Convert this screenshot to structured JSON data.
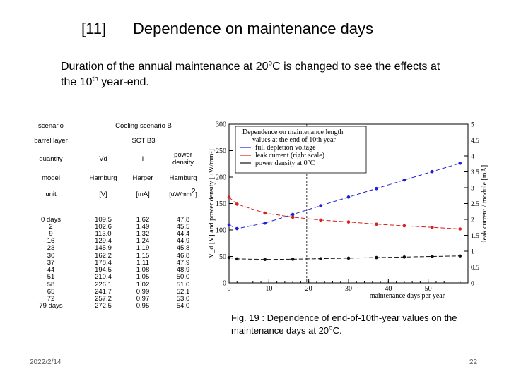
{
  "slide": {
    "title_number": "[11]",
    "title": "Dependence on maintenance days",
    "subtitle_pre": "Duration of the annual maintenance at 20",
    "subtitle_deg": "o",
    "subtitle_mid": "C is changed to see the effects at the 10",
    "subtitle_sup": "th",
    "subtitle_post": " year-end.",
    "caption_pre": "Fig. 19 : Dependence of end-of-10th-year values on the maintenance days at 20",
    "caption_deg": "o",
    "caption_post": "C.",
    "date": "2022/2/14",
    "page": "22"
  },
  "table": {
    "scenario_label": "scenario",
    "scenario_value": "Cooling scenario B",
    "barrel_label": "barrel layer",
    "barrel_value": "SCT B3",
    "quantity_label": "quantity",
    "quantities": [
      "Vd",
      "I",
      "power density"
    ],
    "model_label": "model",
    "models": [
      "Hamburg",
      "Harper",
      "Hamburg"
    ],
    "unit_label": "unit",
    "units": [
      "[V]",
      "[mA]",
      "[uW/mm2]"
    ],
    "days": "0 days\n2\n9\n16\n23\n30\n37\n44\n51\n58\n65\n72\n79 days",
    "vd": "109.5\n102.6\n113.0\n129.4\n145.9\n162.2\n178.4\n194.5\n210.4\n226.1\n241.7\n257.2\n272.5",
    "current": "1.62\n1.49\n1.32\n1.24\n1.19\n1.15\n1.11\n1.08\n1.05\n1.02\n0.99\n0.97\n0.95",
    "power": "47.8\n45.5\n44.4\n44.9\n45.8\n46.8\n47.9\n48.9\n50.0\n51.0\n52.1\n53.0\n54.0"
  },
  "chart_data": {
    "type": "line",
    "legend_title_line1": "Dependence on maintenance length",
    "legend_title_line2": "values at the end of 10th year",
    "series": [
      {
        "name": "full depletion voltage",
        "color": "#1f1fd6",
        "axis": "left",
        "x": [
          0,
          2,
          9,
          16,
          23,
          30,
          37,
          44,
          51,
          58
        ],
        "y": [
          109.5,
          102.6,
          113.0,
          129.4,
          145.9,
          162.2,
          178.4,
          194.5,
          210.4,
          226.1
        ]
      },
      {
        "name": "leak current (right scale)",
        "color": "#d81e1e",
        "axis": "right",
        "x": [
          0,
          2,
          9,
          16,
          23,
          30,
          37,
          44,
          51,
          58
        ],
        "y": [
          2.7,
          2.48,
          2.2,
          2.07,
          1.98,
          1.92,
          1.85,
          1.8,
          1.75,
          1.7
        ]
      },
      {
        "name": "power density at 0°C",
        "color": "#111111",
        "axis": "left",
        "x": [
          0,
          2,
          9,
          16,
          23,
          30,
          37,
          44,
          51,
          58
        ],
        "y": [
          47.8,
          45.5,
          44.4,
          44.9,
          45.8,
          46.8,
          47.9,
          48.9,
          50.0,
          51.0
        ]
      }
    ],
    "xlabel": "maintenance days per year",
    "ylabel_left": "V_d [V] and power density [μW/mm²]",
    "ylabel_right": "leak current / module [mA]",
    "xlim": [
      0,
      60
    ],
    "ylim_left": [
      0,
      300
    ],
    "ylim_right": [
      0,
      5
    ],
    "x_ticks": [
      "0",
      "10",
      "20",
      "30",
      "40",
      "50"
    ],
    "y_left_ticks": [
      "0",
      "50",
      "100",
      "150",
      "200",
      "250",
      "300"
    ],
    "y_right_ticks": [
      "0",
      "0.5",
      "1",
      "1.5",
      "2",
      "2.5",
      "3",
      "3.5",
      "4",
      "4.5",
      "5"
    ],
    "vlines_x": [
      9.5,
      19.5
    ]
  }
}
